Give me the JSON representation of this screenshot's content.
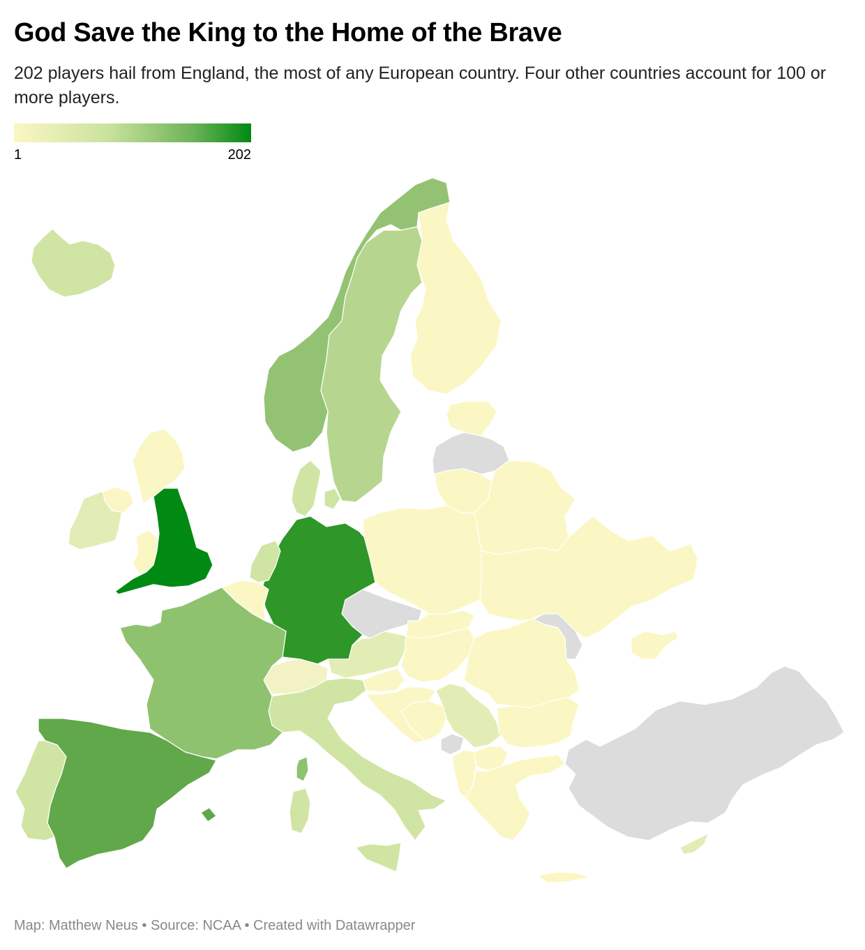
{
  "header": {
    "title": "God Save the King to the Home of the Brave",
    "subtitle": "202 players hail from England, the most of any European country. Four other countries account for 100 or more players."
  },
  "legend": {
    "min_label": "1",
    "max_label": "202",
    "color_low": "#fbf7c4",
    "color_high": "#008a13"
  },
  "colors": {
    "no_data": "#dcdcdc",
    "shade_1": "#fbf7c4",
    "shade_2": "#f2f2c4",
    "shade_3": "#e2edb5",
    "shade_4": "#d0e5a3",
    "shade_5": "#b6d68f",
    "shade_6": "#93c273",
    "shade_7": "#8fc26e",
    "shade_8": "#60a84a",
    "shade_9": "#2f9628",
    "shade_10": "#008a13"
  },
  "regions": [
    {
      "id": "england",
      "fill": "shade_10"
    },
    {
      "id": "germany",
      "fill": "shade_9"
    },
    {
      "id": "spain",
      "fill": "shade_8"
    },
    {
      "id": "france",
      "fill": "shade_7"
    },
    {
      "id": "norway",
      "fill": "shade_6"
    },
    {
      "id": "sweden",
      "fill": "shade_5"
    },
    {
      "id": "iceland",
      "fill": "shade_4"
    },
    {
      "id": "denmark",
      "fill": "shade_4"
    },
    {
      "id": "netherlands",
      "fill": "shade_4"
    },
    {
      "id": "italy",
      "fill": "shade_4"
    },
    {
      "id": "portugal",
      "fill": "shade_4"
    },
    {
      "id": "ireland",
      "fill": "shade_3"
    },
    {
      "id": "austria",
      "fill": "shade_3"
    },
    {
      "id": "serbia",
      "fill": "shade_3"
    },
    {
      "id": "switzerland",
      "fill": "shade_2"
    },
    {
      "id": "scotland",
      "fill": "shade_1"
    },
    {
      "id": "northern-ireland",
      "fill": "shade_1"
    },
    {
      "id": "wales",
      "fill": "shade_1"
    },
    {
      "id": "belgium",
      "fill": "shade_1"
    },
    {
      "id": "finland",
      "fill": "shade_1"
    },
    {
      "id": "estonia",
      "fill": "shade_1"
    },
    {
      "id": "lithuania",
      "fill": "shade_1"
    },
    {
      "id": "belarus",
      "fill": "shade_1"
    },
    {
      "id": "poland",
      "fill": "shade_1"
    },
    {
      "id": "ukraine",
      "fill": "shade_1"
    },
    {
      "id": "slovakia",
      "fill": "shade_1"
    },
    {
      "id": "hungary",
      "fill": "shade_1"
    },
    {
      "id": "romania",
      "fill": "shade_1"
    },
    {
      "id": "bulgaria",
      "fill": "shade_1"
    },
    {
      "id": "slovenia",
      "fill": "shade_1"
    },
    {
      "id": "croatia",
      "fill": "shade_1"
    },
    {
      "id": "bosnia",
      "fill": "shade_1"
    },
    {
      "id": "north-macedonia",
      "fill": "shade_1"
    },
    {
      "id": "albania",
      "fill": "shade_1"
    },
    {
      "id": "greece",
      "fill": "shade_1"
    },
    {
      "id": "cyprus",
      "fill": "shade_3"
    },
    {
      "id": "latvia",
      "fill": "no_data"
    },
    {
      "id": "czechia",
      "fill": "no_data"
    },
    {
      "id": "moldova",
      "fill": "no_data"
    },
    {
      "id": "montenegro",
      "fill": "no_data"
    },
    {
      "id": "turkey",
      "fill": "no_data"
    }
  ],
  "footer": {
    "credit": "Map: Matthew Neus • Source: NCAA • Created with Datawrapper"
  }
}
